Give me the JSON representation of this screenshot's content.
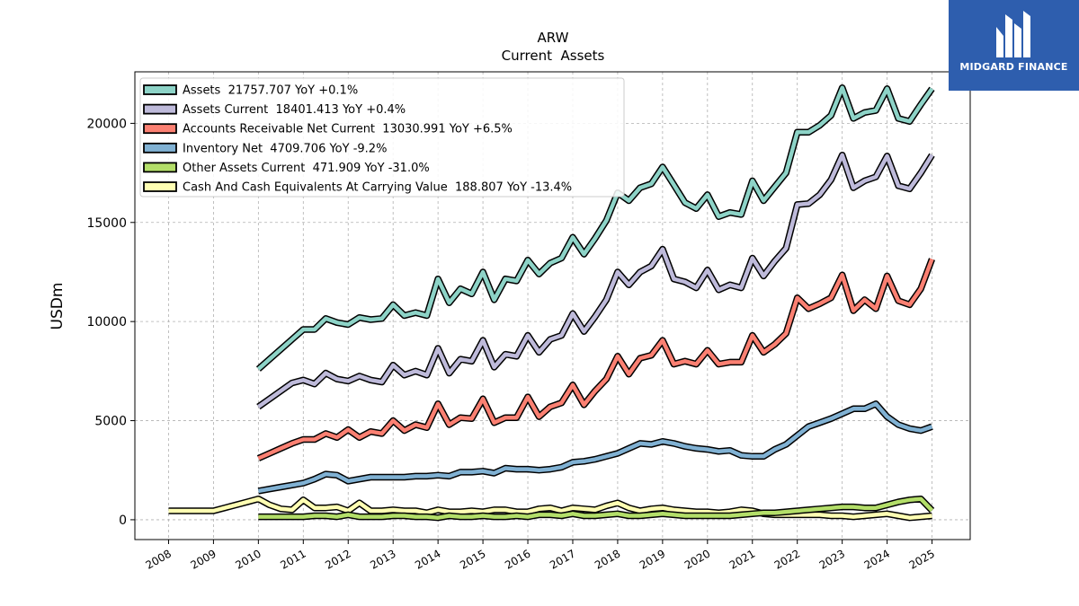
{
  "brand": {
    "name": "MIDGARD FINANCE",
    "bg_color": "#2e5eae",
    "icon": "midgard-logo-icon"
  },
  "chart_data": {
    "type": "line",
    "title": "ARW",
    "subtitle": "Current  Assets",
    "ylabel": "USDm",
    "xlabel": "",
    "ylim": [
      -1000,
      22600
    ],
    "xlim": [
      2007.25,
      2025.85
    ],
    "grid": true,
    "legend_position": "top-left",
    "x_ticks": [
      "2008",
      "2009",
      "2010",
      "2011",
      "2012",
      "2013",
      "2014",
      "2015",
      "2016",
      "2017",
      "2018",
      "2019",
      "2020",
      "2021",
      "2022",
      "2023",
      "2024",
      "2025"
    ],
    "y_ticks": [
      "0",
      "5000",
      "10000",
      "15000",
      "20000"
    ],
    "series": [
      {
        "name": "Assets  21757.707 YoY +0.1%",
        "color": "#8dd3c7",
        "x": [
          2010.0,
          2010.25,
          2010.5,
          2010.75,
          2011.0,
          2011.25,
          2011.5,
          2011.75,
          2012.0,
          2012.25,
          2012.5,
          2012.75,
          2013.0,
          2013.25,
          2013.5,
          2013.75,
          2014.0,
          2014.25,
          2014.5,
          2014.75,
          2015.0,
          2015.25,
          2015.5,
          2015.75,
          2016.0,
          2016.25,
          2016.5,
          2016.75,
          2017.0,
          2017.25,
          2017.5,
          2017.75,
          2018.0,
          2018.25,
          2018.5,
          2018.75,
          2019.0,
          2019.25,
          2019.5,
          2019.75,
          2020.0,
          2020.25,
          2020.5,
          2020.75,
          2021.0,
          2021.25,
          2021.5,
          2021.75,
          2022.0,
          2022.25,
          2022.5,
          2022.75,
          2023.0,
          2023.25,
          2023.5,
          2023.75,
          2024.0,
          2024.25,
          2024.5,
          2024.75,
          2025.0
        ],
        "values": [
          7600,
          8100,
          8600,
          9100,
          9600,
          9600,
          10150,
          9950,
          9850,
          10200,
          10100,
          10150,
          10850,
          10300,
          10450,
          10300,
          12150,
          10950,
          11650,
          11400,
          12500,
          11100,
          12150,
          12050,
          13100,
          12400,
          12950,
          13200,
          14250,
          13400,
          14200,
          15100,
          16500,
          16100,
          16750,
          16950,
          17800,
          16900,
          16000,
          15700,
          16400,
          15300,
          15500,
          15400,
          17100,
          16100,
          16800,
          17500,
          19550,
          19550,
          19900,
          20400,
          21800,
          20250,
          20550,
          20650,
          21750,
          20250,
          20100,
          20950,
          21750
        ]
      },
      {
        "name": "Assets Current  18401.413 YoY +0.4%",
        "color": "#bebada",
        "x": [
          2010.0,
          2010.25,
          2010.5,
          2010.75,
          2011.0,
          2011.25,
          2011.5,
          2011.75,
          2012.0,
          2012.25,
          2012.5,
          2012.75,
          2013.0,
          2013.25,
          2013.5,
          2013.75,
          2014.0,
          2014.25,
          2014.5,
          2014.75,
          2015.0,
          2015.25,
          2015.5,
          2015.75,
          2016.0,
          2016.25,
          2016.5,
          2016.75,
          2017.0,
          2017.25,
          2017.5,
          2017.75,
          2018.0,
          2018.25,
          2018.5,
          2018.75,
          2019.0,
          2019.25,
          2019.5,
          2019.75,
          2020.0,
          2020.25,
          2020.5,
          2020.75,
          2021.0,
          2021.25,
          2021.5,
          2021.75,
          2022.0,
          2022.25,
          2022.5,
          2022.75,
          2023.0,
          2023.25,
          2023.5,
          2023.75,
          2024.0,
          2024.25,
          2024.5,
          2024.75,
          2025.0
        ],
        "values": [
          5700,
          6100,
          6500,
          6900,
          7050,
          6850,
          7400,
          7100,
          7000,
          7250,
          7050,
          6950,
          7800,
          7300,
          7500,
          7300,
          8650,
          7400,
          8100,
          8000,
          9050,
          7700,
          8350,
          8250,
          9300,
          8450,
          9100,
          9300,
          10400,
          9500,
          10250,
          11100,
          12500,
          11850,
          12500,
          12800,
          13650,
          12150,
          12000,
          11700,
          12600,
          11600,
          11850,
          11700,
          13200,
          12300,
          13050,
          13700,
          15900,
          15950,
          16400,
          17150,
          18400,
          16750,
          17100,
          17300,
          18350,
          16850,
          16700,
          17500,
          18400
        ]
      },
      {
        "name": "Accounts Receivable Net Current  13030.991 YoY +6.5%",
        "color": "#fb8072",
        "x": [
          2010.0,
          2010.25,
          2010.5,
          2010.75,
          2011.0,
          2011.25,
          2011.5,
          2011.75,
          2012.0,
          2012.25,
          2012.5,
          2012.75,
          2013.0,
          2013.25,
          2013.5,
          2013.75,
          2014.0,
          2014.25,
          2014.5,
          2014.75,
          2015.0,
          2015.25,
          2015.5,
          2015.75,
          2016.0,
          2016.25,
          2016.5,
          2016.75,
          2017.0,
          2017.25,
          2017.5,
          2017.75,
          2018.0,
          2018.25,
          2018.5,
          2018.75,
          2019.0,
          2019.25,
          2019.5,
          2019.75,
          2020.0,
          2020.25,
          2020.5,
          2020.75,
          2021.0,
          2021.25,
          2021.5,
          2021.75,
          2022.0,
          2022.25,
          2022.5,
          2022.75,
          2023.0,
          2023.25,
          2023.5,
          2023.75,
          2024.0,
          2024.25,
          2024.5,
          2024.75,
          2025.0
        ],
        "values": [
          3100,
          3350,
          3600,
          3850,
          4050,
          4050,
          4350,
          4150,
          4550,
          4150,
          4450,
          4350,
          5000,
          4500,
          4800,
          4650,
          5850,
          4800,
          5150,
          5100,
          6100,
          4900,
          5150,
          5150,
          6200,
          5200,
          5700,
          5900,
          6800,
          5800,
          6500,
          7100,
          8250,
          7350,
          8150,
          8300,
          9050,
          7850,
          8000,
          7850,
          8550,
          7850,
          7950,
          7950,
          9300,
          8450,
          8850,
          9400,
          11200,
          10650,
          10900,
          11200,
          12350,
          10550,
          11100,
          10650,
          12300,
          11050,
          10850,
          11650,
          13150
        ]
      },
      {
        "name": "Inventory Net  4709.706 YoY -9.2%",
        "color": "#80b1d3",
        "x": [
          2010.0,
          2010.25,
          2010.5,
          2010.75,
          2011.0,
          2011.25,
          2011.5,
          2011.75,
          2012.0,
          2012.25,
          2012.5,
          2012.75,
          2013.0,
          2013.25,
          2013.5,
          2013.75,
          2014.0,
          2014.25,
          2014.5,
          2014.75,
          2015.0,
          2015.25,
          2015.5,
          2015.75,
          2016.0,
          2016.25,
          2016.5,
          2016.75,
          2017.0,
          2017.25,
          2017.5,
          2017.75,
          2018.0,
          2018.25,
          2018.5,
          2018.75,
          2019.0,
          2019.25,
          2019.5,
          2019.75,
          2020.0,
          2020.25,
          2020.5,
          2020.75,
          2021.0,
          2021.25,
          2021.5,
          2021.75,
          2022.0,
          2022.25,
          2022.5,
          2022.75,
          2023.0,
          2023.25,
          2023.5,
          2023.75,
          2024.0,
          2024.25,
          2024.5,
          2024.75,
          2025.0
        ],
        "values": [
          1450,
          1550,
          1650,
          1750,
          1850,
          2050,
          2300,
          2250,
          1950,
          2050,
          2150,
          2150,
          2150,
          2150,
          2200,
          2200,
          2250,
          2200,
          2400,
          2400,
          2450,
          2350,
          2600,
          2550,
          2550,
          2500,
          2550,
          2650,
          2900,
          2950,
          3050,
          3200,
          3350,
          3600,
          3850,
          3800,
          3950,
          3850,
          3700,
          3600,
          3550,
          3450,
          3500,
          3250,
          3200,
          3200,
          3550,
          3800,
          4250,
          4700,
          4900,
          5100,
          5350,
          5600,
          5600,
          5850,
          5200,
          4800,
          4600,
          4500,
          4700
        ]
      },
      {
        "name": "Other Assets Current  471.909 YoY -31.0%",
        "color": "#b3de69",
        "x": [
          2010.0,
          2010.25,
          2010.5,
          2010.75,
          2011.0,
          2011.25,
          2011.5,
          2011.75,
          2012.0,
          2012.25,
          2012.5,
          2012.75,
          2013.0,
          2013.25,
          2013.5,
          2013.75,
          2014.0,
          2014.25,
          2014.5,
          2014.75,
          2015.0,
          2015.25,
          2015.5,
          2015.75,
          2016.0,
          2016.25,
          2016.5,
          2016.75,
          2017.0,
          2017.25,
          2017.5,
          2017.75,
          2018.0,
          2018.25,
          2018.5,
          2018.75,
          2019.0,
          2019.25,
          2019.5,
          2019.75,
          2020.0,
          2020.25,
          2020.5,
          2020.75,
          2021.0,
          2021.25,
          2021.5,
          2021.75,
          2022.0,
          2022.25,
          2022.5,
          2022.75,
          2023.0,
          2023.25,
          2023.5,
          2023.75,
          2024.0,
          2024.25,
          2024.5,
          2024.75,
          2025.0
        ],
        "values": [
          150,
          150,
          150,
          150,
          150,
          200,
          200,
          150,
          250,
          150,
          150,
          150,
          200,
          200,
          150,
          150,
          100,
          200,
          150,
          150,
          200,
          150,
          150,
          200,
          150,
          250,
          250,
          200,
          300,
          200,
          200,
          250,
          300,
          200,
          200,
          250,
          300,
          250,
          200,
          200,
          200,
          200,
          200,
          250,
          300,
          350,
          350,
          400,
          450,
          500,
          550,
          600,
          650,
          650,
          600,
          600,
          750,
          900,
          1000,
          1050,
          470
        ]
      },
      {
        "name": "Cash And Cash Equivalents At Carrying Value  188.807 YoY -13.4%",
        "color": "#ffffb3",
        "x": [
          2008.0,
          2008.25,
          2008.5,
          2008.75,
          2009.0,
          2009.25,
          2009.5,
          2009.75,
          2010.0,
          2010.25,
          2010.5,
          2010.75,
          2011.0,
          2011.25,
          2011.5,
          2011.75,
          2012.0,
          2012.25,
          2012.5,
          2012.75,
          2013.0,
          2013.25,
          2013.5,
          2013.75,
          2014.0,
          2014.25,
          2014.5,
          2014.75,
          2015.0,
          2015.25,
          2015.5,
          2015.75,
          2016.0,
          2016.25,
          2016.5,
          2016.75,
          2017.0,
          2017.25,
          2017.5,
          2017.75,
          2018.0,
          2018.25,
          2018.5,
          2018.75,
          2019.0,
          2019.25,
          2019.5,
          2019.75,
          2020.0,
          2020.25,
          2020.5,
          2020.75,
          2021.0,
          2021.25,
          2021.5,
          2021.75,
          2022.0,
          2022.25,
          2022.5,
          2022.75,
          2023.0,
          2023.25,
          2023.5,
          2023.75,
          2024.0,
          2024.25,
          2024.5,
          2024.75,
          2025.0
        ],
        "values": [
          450,
          450,
          450,
          450,
          450,
          600,
          750,
          900,
          1050,
          750,
          550,
          500,
          1000,
          600,
          600,
          650,
          450,
          850,
          450,
          450,
          500,
          450,
          450,
          350,
          500,
          400,
          400,
          450,
          400,
          500,
          500,
          400,
          400,
          550,
          600,
          450,
          600,
          550,
          500,
          700,
          850,
          600,
          450,
          550,
          600,
          500,
          450,
          400,
          400,
          350,
          400,
          500,
          450,
          300,
          250,
          250,
          250,
          250,
          250,
          200,
          200,
          150,
          200,
          250,
          300,
          200,
          100,
          150,
          200
        ]
      }
    ]
  }
}
